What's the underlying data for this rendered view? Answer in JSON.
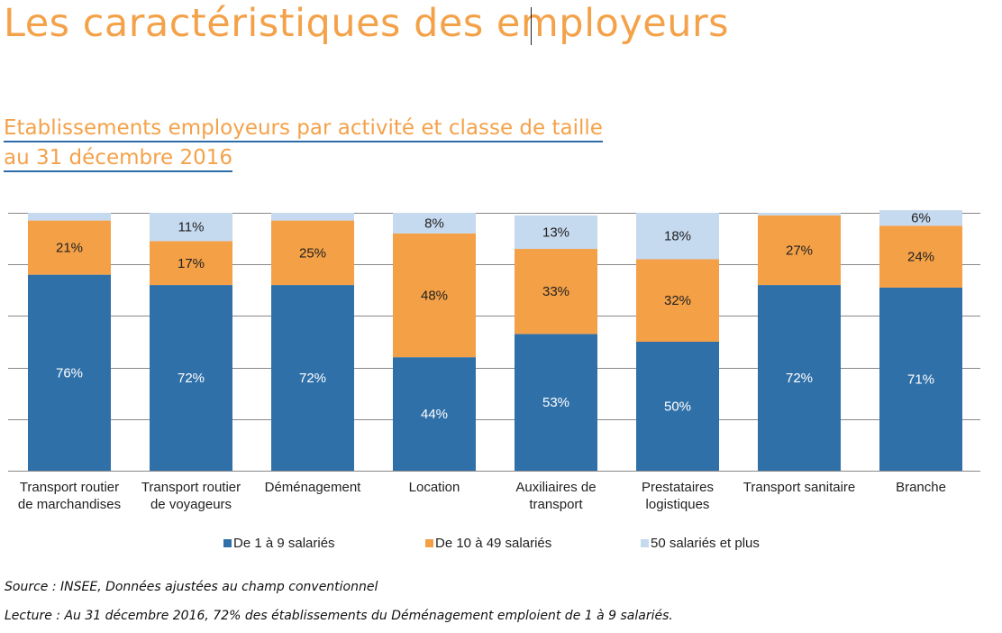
{
  "page": {
    "title": "Les caractéristiques des employeurs",
    "subtitle_line1": "Etablissements employeurs par activité et classe de taille",
    "subtitle_line2": "au 31 décembre 2016",
    "source": "Source : INSEE, Données ajustées au champ conventionnel",
    "lecture": "Lecture : Au 31 décembre 2016, 72% des établissements du Déménagement emploient de 1 à 9 salariés."
  },
  "colors": {
    "title": "#f4a24a",
    "series_1": "#3070a8",
    "series_2": "#f4a046",
    "series_3": "#c5d9ef",
    "underline": "#2e6ca8",
    "gridline": "#888888"
  },
  "chart_data": {
    "type": "bar",
    "stacked": true,
    "percent": true,
    "title": "Etablissements employeurs par activité et classe de taille au 31 décembre 2016",
    "xlabel": "",
    "ylabel": "",
    "ylim": [
      0,
      100
    ],
    "grid": true,
    "y_axis_visible": false,
    "legend_position": "bottom",
    "categories": [
      [
        "Transport routier",
        "de marchandises"
      ],
      [
        "Transport routier",
        "de voyageurs"
      ],
      [
        "Déménagement"
      ],
      [
        "Location"
      ],
      [
        "Auxiliaires de",
        "transport"
      ],
      [
        "Prestataires",
        "logistiques"
      ],
      [
        "Transport sanitaire"
      ],
      [
        "Branche"
      ]
    ],
    "series": [
      {
        "name": "De 1 à 9 salariés",
        "values": [
          76,
          72,
          72,
          44,
          53,
          50,
          72,
          71
        ],
        "labels": [
          "76%",
          "72%",
          "72%",
          "44%",
          "53%",
          "50%",
          "72%",
          "71%"
        ]
      },
      {
        "name": "De 10 à 49 salariés",
        "values": [
          21,
          17,
          25,
          48,
          33,
          32,
          27,
          24
        ],
        "labels": [
          "21%",
          "17%",
          "25%",
          "48%",
          "33%",
          "32%",
          "27%",
          "24%"
        ]
      },
      {
        "name": "50 salariés et plus",
        "values": [
          3,
          11,
          3,
          8,
          13,
          18,
          1,
          6
        ],
        "labels": [
          "",
          "11%",
          "",
          "8%",
          "13%",
          "18%",
          "",
          "6%"
        ]
      }
    ]
  }
}
